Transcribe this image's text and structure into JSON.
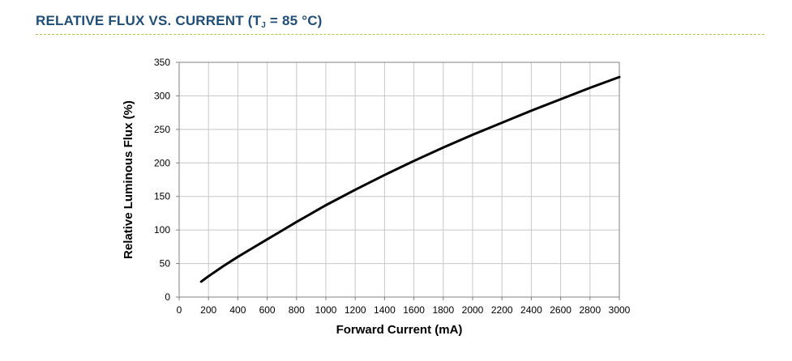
{
  "title": {
    "prefix": "RELATIVE FLUX VS. CURRENT (T",
    "subscript": "J",
    "suffix": " = 85 °C)"
  },
  "colors": {
    "title": "#1f4e79",
    "rule": "#b7c443",
    "grid": "#c8c8c8",
    "line": "#000000"
  },
  "chart_data": {
    "type": "line",
    "title": "RELATIVE FLUX VS. CURRENT (TJ = 85 °C)",
    "xlabel": "Forward Current (mA)",
    "ylabel": "Relative Luminous Flux (%)",
    "xlim": [
      0,
      3000
    ],
    "ylim": [
      0,
      350
    ],
    "xticks": [
      0,
      200,
      400,
      600,
      800,
      1000,
      1200,
      1400,
      1600,
      1800,
      2000,
      2200,
      2400,
      2600,
      2800,
      3000
    ],
    "yticks": [
      0,
      50,
      100,
      150,
      200,
      250,
      300,
      350
    ],
    "grid": true,
    "legend": "none",
    "series": [
      {
        "x": [
          150,
          200,
          300,
          400,
          500,
          600,
          700,
          800,
          1000,
          1200,
          1400,
          1600,
          1800,
          2000,
          2200,
          2400,
          2600,
          2800,
          3000
        ],
        "y": [
          23,
          31,
          46,
          60,
          73,
          86,
          99,
          112,
          137,
          160,
          182,
          203,
          223,
          242,
          260,
          278,
          295,
          312,
          328
        ]
      }
    ]
  }
}
